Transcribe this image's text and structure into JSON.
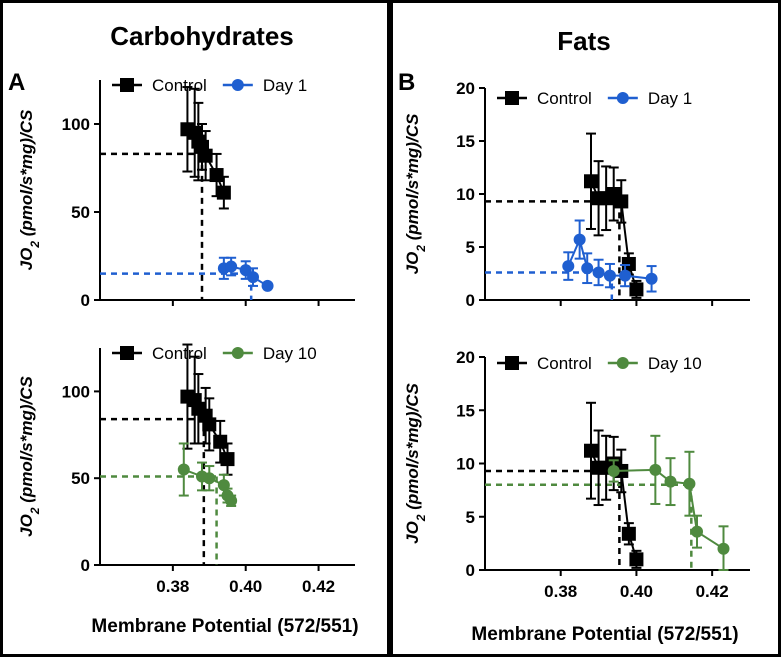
{
  "figure": {
    "panel_left": {
      "title": "Carbohydrates",
      "letter": "A",
      "xlabel": "Membrane Potential (572/551)"
    },
    "panel_right": {
      "title": "Fats",
      "letter": "B",
      "xlabel": "Membrane Potential (572/551)"
    }
  },
  "colors": {
    "control": "#000000",
    "day1": "#1f5fd0",
    "day10": "#4f8a3f"
  },
  "chart_data": [
    {
      "id": "A-top",
      "type": "line",
      "panel": "A",
      "ylabel_main": "JO",
      "ylabel_sub": "2",
      "ylabel_rest": " (pmol/s*mg)/CS",
      "xlim": [
        0.36,
        0.43
      ],
      "ylim": [
        0,
        125
      ],
      "yticks": [
        0,
        50,
        100
      ],
      "xticks": [
        0.38,
        0.4,
        0.42
      ],
      "show_xtick_labels": false,
      "series": [
        {
          "name": "Control",
          "key": "control",
          "marker": "square",
          "connect": true,
          "points": [
            {
              "x": 0.384,
              "y": 97,
              "err": 24
            },
            {
              "x": 0.386,
              "y": 95,
              "err": 25
            },
            {
              "x": 0.387,
              "y": 90,
              "err": 22
            },
            {
              "x": 0.388,
              "y": 87,
              "err": 13
            },
            {
              "x": 0.389,
              "y": 82,
              "err": 14
            },
            {
              "x": 0.392,
              "y": 71,
              "err": 12
            },
            {
              "x": 0.394,
              "y": 61,
              "err": 9
            }
          ],
          "ref": {
            "x": 0.388,
            "y": 83
          }
        },
        {
          "name": "Day 1",
          "key": "day1",
          "marker": "circle",
          "connect": true,
          "points": [
            {
              "x": 0.394,
              "y": 18,
              "err": 6
            },
            {
              "x": 0.396,
              "y": 19,
              "err": 5
            },
            {
              "x": 0.4,
              "y": 17,
              "err": 5
            },
            {
              "x": 0.402,
              "y": 13,
              "err": 5
            },
            {
              "x": 0.406,
              "y": 8,
              "err": 0
            }
          ],
          "ref": {
            "x": 0.4015,
            "y": 15
          }
        }
      ],
      "legend": [
        "Control",
        "Day 1"
      ]
    },
    {
      "id": "A-bottom",
      "type": "line",
      "panel": "A",
      "ylabel_main": "JO",
      "ylabel_sub": "2",
      "ylabel_rest": " (pmol/s*mg)/CS",
      "xlim": [
        0.36,
        0.43
      ],
      "ylim": [
        0,
        125
      ],
      "yticks": [
        0,
        50,
        100
      ],
      "xticks": [
        0.38,
        0.4,
        0.42
      ],
      "show_xtick_labels": true,
      "xticklabels": [
        "0.38",
        "0.40",
        "0.42"
      ],
      "series": [
        {
          "name": "Control",
          "key": "control",
          "marker": "square",
          "connect": true,
          "points": [
            {
              "x": 0.384,
              "y": 97,
              "err": 30
            },
            {
              "x": 0.386,
              "y": 95,
              "err": 25
            },
            {
              "x": 0.387,
              "y": 90,
              "err": 20
            },
            {
              "x": 0.389,
              "y": 86,
              "err": 16
            },
            {
              "x": 0.39,
              "y": 81,
              "err": 15
            },
            {
              "x": 0.393,
              "y": 71,
              "err": 12
            },
            {
              "x": 0.395,
              "y": 61,
              "err": 9
            }
          ],
          "ref": {
            "x": 0.3885,
            "y": 84
          }
        },
        {
          "name": "Day 10",
          "key": "day10",
          "marker": "circle",
          "connect": true,
          "points": [
            {
              "x": 0.383,
              "y": 55,
              "err": 15
            },
            {
              "x": 0.388,
              "y": 51,
              "err": 8
            },
            {
              "x": 0.39,
              "y": 50,
              "err": 7
            },
            {
              "x": 0.394,
              "y": 46,
              "err": 6
            },
            {
              "x": 0.395,
              "y": 40,
              "err": 4
            },
            {
              "x": 0.396,
              "y": 37,
              "err": 3
            }
          ],
          "ref": {
            "x": 0.392,
            "y": 51
          }
        }
      ],
      "legend": [
        "Control",
        "Day 10"
      ]
    },
    {
      "id": "B-top",
      "type": "line",
      "panel": "B",
      "ylabel_main": "JO",
      "ylabel_sub": "2",
      "ylabel_rest": " (pmol/s*mg)/CS",
      "xlim": [
        0.36,
        0.43
      ],
      "ylim": [
        0,
        20
      ],
      "yticks": [
        0,
        5,
        10,
        15,
        20
      ],
      "xticks": [
        0.38,
        0.4,
        0.42
      ],
      "show_xtick_labels": false,
      "series": [
        {
          "name": "Control",
          "key": "control",
          "marker": "square",
          "connect": true,
          "points": [
            {
              "x": 0.388,
              "y": 11.2,
              "err": 4.5
            },
            {
              "x": 0.39,
              "y": 9.6,
              "err": 3.5
            },
            {
              "x": 0.392,
              "y": 9.6,
              "err": 3.0
            },
            {
              "x": 0.394,
              "y": 10.0,
              "err": 2.5
            },
            {
              "x": 0.396,
              "y": 9.3,
              "err": 2.0
            },
            {
              "x": 0.398,
              "y": 3.4,
              "err": 1.0
            },
            {
              "x": 0.4,
              "y": 1.0,
              "err": 0.8
            }
          ],
          "ref": {
            "x": 0.3955,
            "y": 9.3
          }
        },
        {
          "name": "Day 1",
          "key": "day1",
          "marker": "circle",
          "connect": true,
          "points": [
            {
              "x": 0.382,
              "y": 3.2,
              "err": 1.3
            },
            {
              "x": 0.385,
              "y": 5.7,
              "err": 1.8
            },
            {
              "x": 0.387,
              "y": 3.0,
              "err": 1.4
            },
            {
              "x": 0.39,
              "y": 2.6,
              "err": 1.2
            },
            {
              "x": 0.393,
              "y": 2.3,
              "err": 1.1
            },
            {
              "x": 0.397,
              "y": 2.3,
              "err": 1.0
            },
            {
              "x": 0.404,
              "y": 2.0,
              "err": 1.2
            }
          ],
          "ref": {
            "x": 0.3935,
            "y": 2.6
          }
        }
      ],
      "legend": [
        "Control",
        "Day 1"
      ]
    },
    {
      "id": "B-bottom",
      "type": "line",
      "panel": "B",
      "ylabel_main": "JO",
      "ylabel_sub": "2",
      "ylabel_rest": " (pmol/s*mg)/CS",
      "xlim": [
        0.36,
        0.43
      ],
      "ylim": [
        0,
        20
      ],
      "yticks": [
        0,
        5,
        10,
        15,
        20
      ],
      "xticks": [
        0.38,
        0.4,
        0.42
      ],
      "show_xtick_labels": true,
      "xticklabels": [
        "0.38",
        "0.40",
        "0.42"
      ],
      "series": [
        {
          "name": "Control",
          "key": "control",
          "marker": "square",
          "connect": true,
          "points": [
            {
              "x": 0.388,
              "y": 11.2,
              "err": 4.5
            },
            {
              "x": 0.39,
              "y": 9.6,
              "err": 3.5
            },
            {
              "x": 0.392,
              "y": 9.6,
              "err": 3.0
            },
            {
              "x": 0.394,
              "y": 10.0,
              "err": 2.5
            },
            {
              "x": 0.396,
              "y": 9.3,
              "err": 2.0
            },
            {
              "x": 0.398,
              "y": 3.4,
              "err": 1.0
            },
            {
              "x": 0.4,
              "y": 1.0,
              "err": 0.8
            }
          ],
          "ref": {
            "x": 0.3955,
            "y": 9.3
          }
        },
        {
          "name": "Day 10",
          "key": "day10",
          "marker": "circle",
          "connect": true,
          "points": [
            {
              "x": 0.394,
              "y": 9.3,
              "err": 1.0
            },
            {
              "x": 0.405,
              "y": 9.4,
              "err": 3.2
            },
            {
              "x": 0.409,
              "y": 8.3,
              "err": 2.2
            },
            {
              "x": 0.414,
              "y": 8.1,
              "err": 3.0
            },
            {
              "x": 0.416,
              "y": 3.6,
              "err": 1.5
            },
            {
              "x": 0.423,
              "y": 2.0,
              "err": 2.1
            }
          ],
          "ref": {
            "x": 0.4145,
            "y": 8.0
          }
        }
      ],
      "legend": [
        "Control",
        "Day 10"
      ]
    }
  ]
}
